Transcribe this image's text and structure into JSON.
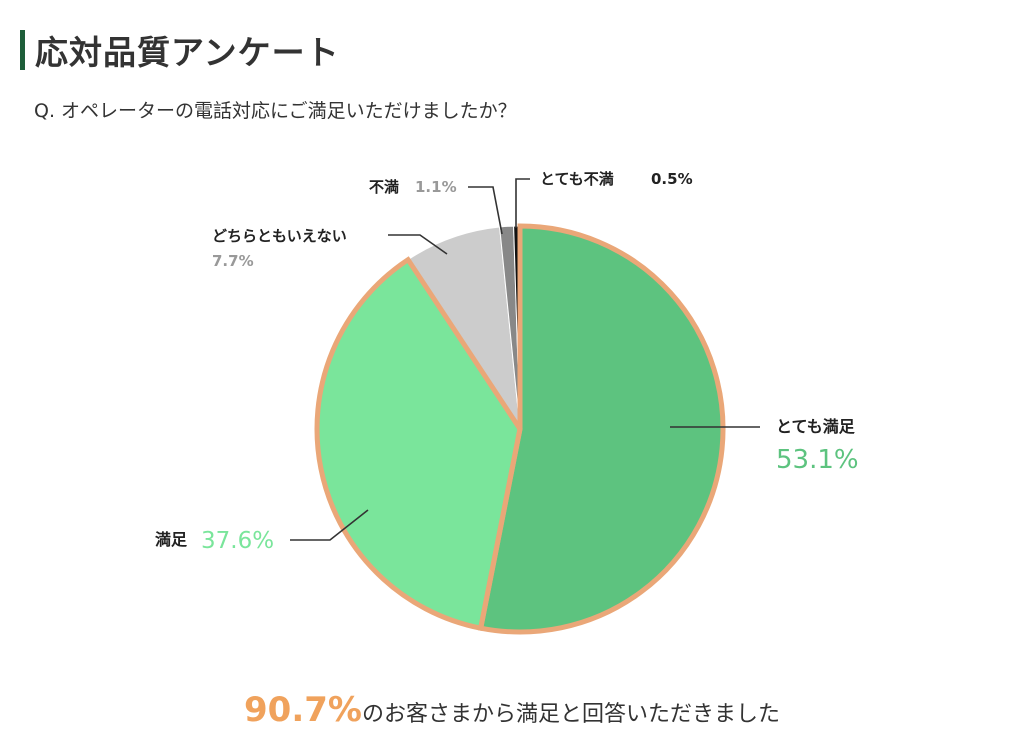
{
  "title": "応対品質アンケート",
  "question": "Q. オペレーターの電話対応にご満足いただけましたか？",
  "chart_data": {
    "type": "pie",
    "slices": [
      {
        "label": "とても満足",
        "value": 53.1,
        "display": "53.1%",
        "color": "#5dc37f"
      },
      {
        "label": "満足",
        "value": 37.6,
        "display": "37.6%",
        "color": "#7ae59b"
      },
      {
        "label": "どちらともいえない",
        "value": 7.7,
        "display": "7.7%",
        "color": "#cccccc"
      },
      {
        "label": "不満",
        "value": 1.1,
        "display": "1.1%",
        "color": "#888888"
      },
      {
        "label": "とても不満",
        "value": 0.5,
        "display": "0.5%",
        "color": "#111111"
      }
    ],
    "highlight_border_color": "#eaa778",
    "highlighted": [
      "とても満足",
      "満足"
    ]
  },
  "footer": {
    "percent": "90.7%",
    "text": "のお客さまから満足と回答いただきました"
  }
}
